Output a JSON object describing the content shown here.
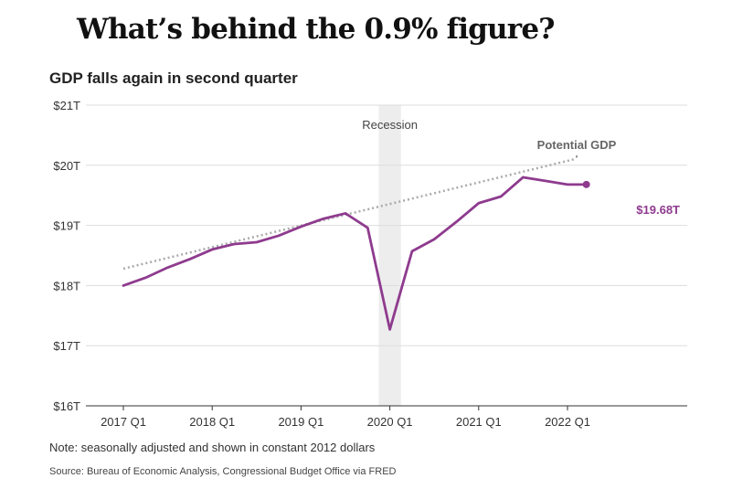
{
  "headline": "What’s behind the 0.9% figure?",
  "note": "Note: seasonally adjusted and shown in constant 2012 dollars",
  "source": "Source: Bureau of Economic Analysis, Congressional Budget Office via FRED",
  "colors": {
    "gdp": "#8e3b8e",
    "potential": "#aaaaaa",
    "recession": "#ededed",
    "grid": "#dddddd",
    "axis": "#333333"
  },
  "chart_data": {
    "type": "line",
    "title": "GDP falls again in second quarter",
    "ylim": [
      16,
      21
    ],
    "xlim": [
      0,
      21
    ],
    "y_ticks": [
      {
        "value": 21,
        "label": "$21T"
      },
      {
        "value": 20,
        "label": "$20T"
      },
      {
        "value": 19,
        "label": "$19T"
      },
      {
        "value": 18,
        "label": "$18T"
      },
      {
        "value": 17,
        "label": "$17T"
      },
      {
        "value": 16,
        "label": "$16T"
      }
    ],
    "x_ticks": [
      {
        "index": 0,
        "label": "2017 Q1"
      },
      {
        "index": 4,
        "label": "2018 Q1"
      },
      {
        "index": 8,
        "label": "2019 Q1"
      },
      {
        "index": 12,
        "label": "2020 Q1"
      },
      {
        "index": 16,
        "label": "2021 Q1"
      },
      {
        "index": 20,
        "label": "2022 Q1"
      }
    ],
    "grid": true,
    "recession": {
      "start": 11.5,
      "end": 12.5,
      "label": "Recession"
    },
    "series": [
      {
        "name": "GDP",
        "x": [
          "2017 Q1",
          "2017 Q2",
          "2017 Q3",
          "2017 Q4",
          "2018 Q1",
          "2018 Q2",
          "2018 Q3",
          "2018 Q4",
          "2019 Q1",
          "2019 Q2",
          "2019 Q3",
          "2019 Q4",
          "2020 Q1",
          "2020 Q2",
          "2020 Q3",
          "2020 Q4",
          "2021 Q1",
          "2021 Q2",
          "2021 Q3",
          "2021 Q4",
          "2022 Q1",
          "2022 Q2"
        ],
        "values": [
          18.0,
          18.13,
          18.3,
          18.44,
          18.6,
          18.69,
          18.72,
          18.83,
          18.98,
          19.11,
          19.2,
          18.96,
          17.27,
          18.57,
          18.77,
          19.06,
          19.37,
          19.48,
          19.8,
          19.74,
          19.68,
          19.68
        ]
      },
      {
        "name": "Potential GDP",
        "x_start": 0,
        "x_end": 20.3,
        "values": [
          18.28,
          20.1
        ]
      }
    ],
    "annotations": [
      {
        "text": "Potential GDP",
        "series": "Potential GDP"
      },
      {
        "text": "$19.68T",
        "series": "GDP"
      }
    ]
  }
}
